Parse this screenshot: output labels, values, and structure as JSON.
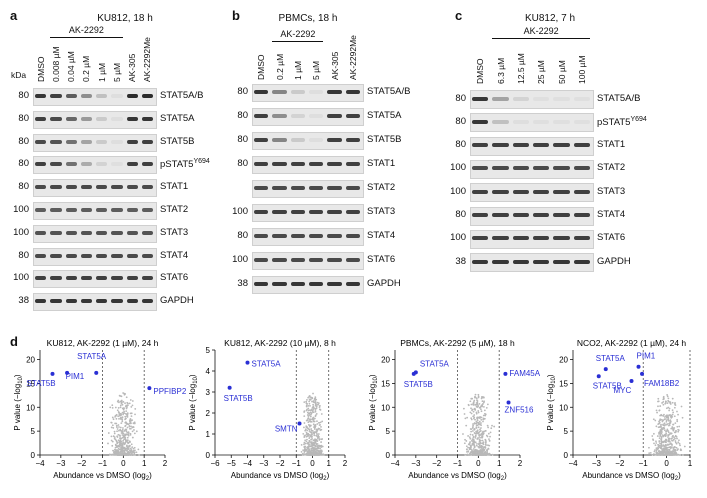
{
  "panel_a": {
    "label": "a",
    "title": "KU812, 18 h",
    "bracket_label": "AK-2292",
    "kda_label": "kDa",
    "lanes": [
      "DMSO",
      "0.008 µM",
      "0.04 µM",
      "0.2 µM",
      "1 µM",
      "5 µM",
      "AK-305",
      "AK-2292Me"
    ],
    "rows": [
      {
        "mw": "80",
        "name": "STAT5A/B",
        "sup": "",
        "levels": [
          0.9,
          0.85,
          0.7,
          0.45,
          0.2,
          0.05,
          0.95,
          0.95
        ]
      },
      {
        "mw": "80",
        "name": "STAT5A",
        "sup": "",
        "levels": [
          0.85,
          0.8,
          0.65,
          0.4,
          0.15,
          0.05,
          0.9,
          0.9
        ]
      },
      {
        "mw": "80",
        "name": "STAT5B",
        "sup": "",
        "levels": [
          0.8,
          0.75,
          0.6,
          0.35,
          0.15,
          0.05,
          0.85,
          0.85
        ]
      },
      {
        "mw": "80",
        "name": "pSTAT5",
        "sup": "Y694",
        "levels": [
          0.85,
          0.8,
          0.6,
          0.3,
          0.1,
          0.02,
          0.85,
          0.85
        ]
      },
      {
        "mw": "80",
        "name": "STAT1",
        "sup": "",
        "levels": [
          0.8,
          0.8,
          0.8,
          0.8,
          0.8,
          0.8,
          0.8,
          0.8
        ]
      },
      {
        "mw": "100",
        "name": "STAT2",
        "sup": "",
        "levels": [
          0.7,
          0.7,
          0.7,
          0.7,
          0.7,
          0.7,
          0.7,
          0.7
        ]
      },
      {
        "mw": "100",
        "name": "STAT3",
        "sup": "",
        "levels": [
          0.75,
          0.75,
          0.75,
          0.75,
          0.75,
          0.75,
          0.75,
          0.75
        ]
      },
      {
        "mw": "80",
        "name": "STAT4",
        "sup": "",
        "levels": [
          0.8,
          0.8,
          0.8,
          0.8,
          0.8,
          0.8,
          0.8,
          0.8
        ]
      },
      {
        "mw": "100",
        "name": "STAT6",
        "sup": "",
        "levels": [
          0.85,
          0.85,
          0.85,
          0.85,
          0.85,
          0.85,
          0.85,
          0.85
        ]
      },
      {
        "mw": "38",
        "name": "GAPDH",
        "sup": "",
        "levels": [
          0.9,
          0.9,
          0.9,
          0.9,
          0.9,
          0.9,
          0.9,
          0.9
        ]
      }
    ]
  },
  "panel_b": {
    "label": "b",
    "title": "PBMCs, 18 h",
    "bracket_label": "AK-2292",
    "lanes": [
      "DMSO",
      "0.2 µM",
      "1 µM",
      "5 µM",
      "AK-305",
      "AK-2292Me"
    ],
    "rows": [
      {
        "mw": "80",
        "name": "STAT5A/B",
        "sup": "",
        "levels": [
          0.9,
          0.5,
          0.15,
          0.05,
          0.9,
          0.9
        ]
      },
      {
        "mw": "80",
        "name": "STAT5A",
        "sup": "",
        "levels": [
          0.85,
          0.45,
          0.1,
          0.05,
          0.85,
          0.85
        ]
      },
      {
        "mw": "80",
        "name": "STAT5B",
        "sup": "",
        "levels": [
          0.85,
          0.5,
          0.15,
          0.05,
          0.85,
          0.85
        ]
      },
      {
        "mw": "80",
        "name": "STAT1",
        "sup": "",
        "levels": [
          0.85,
          0.85,
          0.85,
          0.85,
          0.85,
          0.85
        ]
      },
      {
        "mw": "",
        "name": "STAT2",
        "sup": "",
        "levels": [
          0.8,
          0.8,
          0.8,
          0.8,
          0.8,
          0.8
        ]
      },
      {
        "mw": "100",
        "name": "STAT3",
        "sup": "",
        "levels": [
          0.85,
          0.85,
          0.85,
          0.85,
          0.85,
          0.85
        ]
      },
      {
        "mw": "80",
        "name": "STAT4",
        "sup": "",
        "levels": [
          0.8,
          0.8,
          0.8,
          0.8,
          0.8,
          0.8
        ]
      },
      {
        "mw": "100",
        "name": "STAT6",
        "sup": "",
        "levels": [
          0.8,
          0.8,
          0.8,
          0.8,
          0.8,
          0.8
        ]
      },
      {
        "mw": "38",
        "name": "GAPDH",
        "sup": "",
        "levels": [
          0.9,
          0.9,
          0.9,
          0.9,
          0.9,
          0.9
        ]
      }
    ]
  },
  "panel_c": {
    "label": "c",
    "title": "KU812, 7 h",
    "bracket_label": "AK-2292",
    "lanes": [
      "DMSO",
      "6.3 µM",
      "12.5 µM",
      "25 µM",
      "50 µM",
      "100 µM"
    ],
    "rows": [
      {
        "mw": "80",
        "name": "STAT5A/B",
        "sup": "",
        "levels": [
          0.9,
          0.35,
          0.1,
          0.03,
          0.02,
          0.02
        ]
      },
      {
        "mw": "80",
        "name": "pSTAT5",
        "sup": "Y694",
        "levels": [
          0.9,
          0.2,
          0.05,
          0.02,
          0.02,
          0.02
        ]
      },
      {
        "mw": "80",
        "name": "STAT1",
        "sup": "",
        "levels": [
          0.85,
          0.85,
          0.85,
          0.85,
          0.85,
          0.85
        ]
      },
      {
        "mw": "100",
        "name": "STAT2",
        "sup": "",
        "levels": [
          0.8,
          0.8,
          0.8,
          0.8,
          0.8,
          0.8
        ]
      },
      {
        "mw": "100",
        "name": "STAT3",
        "sup": "",
        "levels": [
          0.85,
          0.85,
          0.85,
          0.85,
          0.85,
          0.85
        ]
      },
      {
        "mw": "80",
        "name": "STAT4",
        "sup": "",
        "levels": [
          0.85,
          0.85,
          0.85,
          0.85,
          0.85,
          0.85
        ]
      },
      {
        "mw": "100",
        "name": "STAT6",
        "sup": "",
        "levels": [
          0.85,
          0.85,
          0.85,
          0.85,
          0.85,
          0.85
        ]
      },
      {
        "mw": "38",
        "name": "GAPDH",
        "sup": "",
        "levels": [
          0.9,
          0.9,
          0.9,
          0.9,
          0.9,
          0.9
        ]
      }
    ]
  },
  "panel_d": {
    "label": "d",
    "ylabel_main": "P value (−log",
    "ylabel_sub": "10",
    "xlabel_main": "Abundance vs DMSO (log",
    "xlabel_sub": "2",
    "xlabel_close": ")"
  },
  "colors": {
    "highlight": "#2a2fd4",
    "background_points": "#b8b8b8",
    "band": "#222222"
  },
  "chart_data": [
    {
      "type": "scatter",
      "title": "KU812, AK-2292 (1 µM), 24 h",
      "xlabel": "Abundance vs DMSO (log2)",
      "ylabel": "P value (−log10)",
      "xlim": [
        -4,
        2
      ],
      "ylim": [
        0,
        22
      ],
      "xticks": [
        -4,
        -3,
        -2,
        -1,
        0,
        1,
        2
      ],
      "yticks": [
        0,
        5,
        10,
        15,
        20
      ],
      "threshold_x": [
        -1,
        1
      ],
      "highlighted": [
        {
          "label": "STAT5A",
          "x": -2.7,
          "y": 17.2
        },
        {
          "label": "STAT5B",
          "x": -3.4,
          "y": 17.0
        },
        {
          "label": "PIM1",
          "x": -1.3,
          "y": 17.2
        },
        {
          "label": "PPFIBP2",
          "x": 1.25,
          "y": 14.0
        }
      ]
    },
    {
      "type": "scatter",
      "title": "KU812, AK-2292 (10 µM), 8 h",
      "xlabel": "Abundance vs DMSO (log2)",
      "ylabel": "P value (−log10)",
      "xlim": [
        -6,
        2
      ],
      "ylim": [
        0,
        5
      ],
      "xticks": [
        -6,
        -5,
        -4,
        -3,
        -2,
        -1,
        0,
        1,
        2
      ],
      "yticks": [
        0,
        1,
        2,
        3,
        4,
        5
      ],
      "threshold_x": [
        -1,
        1
      ],
      "highlighted": [
        {
          "label": "STAT5A",
          "x": -4.0,
          "y": 4.4
        },
        {
          "label": "STAT5B",
          "x": -5.1,
          "y": 3.2
        },
        {
          "label": "SMTN",
          "x": -0.8,
          "y": 1.5
        }
      ]
    },
    {
      "type": "scatter",
      "title": "PBMCs, AK-2292 (5 µM), 18 h",
      "xlabel": "Abundance vs DMSO (log2)",
      "ylabel": "P value (−log10)",
      "xlim": [
        -4,
        2
      ],
      "ylim": [
        0,
        22
      ],
      "xticks": [
        -4,
        -3,
        -2,
        -1,
        0,
        1,
        2
      ],
      "yticks": [
        0,
        5,
        10,
        15,
        20
      ],
      "threshold_x": [
        -1,
        1
      ],
      "highlighted": [
        {
          "label": "STAT5A",
          "x": -3.0,
          "y": 17.3
        },
        {
          "label": "STAT5B",
          "x": -3.1,
          "y": 17.0
        },
        {
          "label": "FAM45A",
          "x": 1.3,
          "y": 17.0
        },
        {
          "label": "ZNF516",
          "x": 1.45,
          "y": 11.0
        }
      ]
    },
    {
      "type": "scatter",
      "title": "NCO2, AK-2292 (1 µM), 24 h",
      "xlabel": "Abundance vs DMSO (log2)",
      "ylabel": "P value (−log10)",
      "xlim": [
        -4,
        1
      ],
      "ylim": [
        0,
        22
      ],
      "xticks": [
        -4,
        -3,
        -2,
        -1,
        0,
        1
      ],
      "yticks": [
        0,
        5,
        10,
        15,
        20
      ],
      "threshold_x": [
        -1,
        1
      ],
      "highlighted": [
        {
          "label": "STAT5A",
          "x": -2.6,
          "y": 18.0
        },
        {
          "label": "STAT5B",
          "x": -2.9,
          "y": 16.5
        },
        {
          "label": "PIM1",
          "x": -1.2,
          "y": 18.5
        },
        {
          "label": "MYC",
          "x": -1.5,
          "y": 15.5
        },
        {
          "label": "FAM18B2",
          "x": -1.05,
          "y": 17.0
        }
      ]
    }
  ]
}
